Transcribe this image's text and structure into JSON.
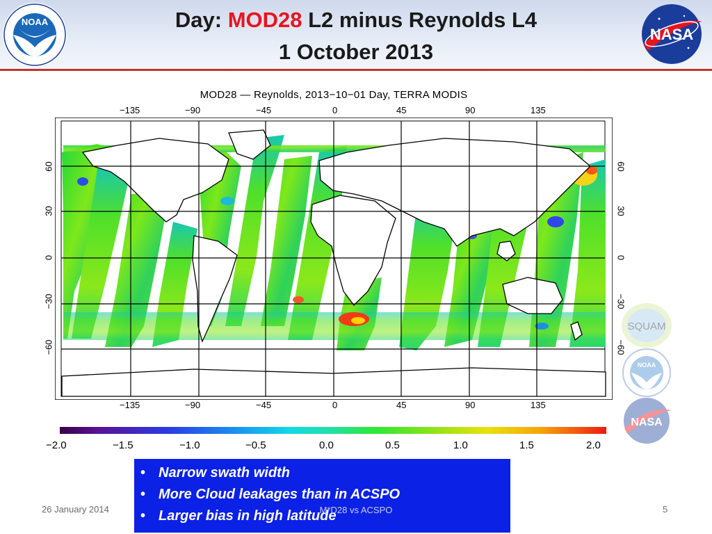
{
  "slide": {
    "title_prefix": "Day: ",
    "title_highlight": "MOD28",
    "title_suffix": " L2 minus Reynolds L4",
    "subtitle": "1 October 2013",
    "colors": {
      "highlight": "#e8141e",
      "bullet_box": "#0b21e6",
      "header_rule": "#c0342b"
    }
  },
  "logos": {
    "noaa_header": "NOAA",
    "nasa_header": "NASA",
    "squam": "SQUAM",
    "noaa_side": "NOAA",
    "nasa_side": "NASA"
  },
  "map": {
    "title": "MOD28 — Reynolds, 2013−10−01 Day, TERRA MODIS",
    "lon_labels": [
      "−135",
      "−90",
      "−45",
      "0",
      "45",
      "90",
      "135"
    ],
    "lat_labels": [
      "60",
      "30",
      "0",
      "−30",
      "−60"
    ]
  },
  "colorbar": {
    "ticks": [
      "−2.0",
      "−1.5",
      "−1.0",
      "−0.5",
      "0.0",
      "0.5",
      "1.0",
      "1.5",
      "2.0"
    ]
  },
  "bullets": [
    "Narrow swath width",
    "More Cloud leakages than in ACSPO",
    "Larger bias in high latitude"
  ],
  "footer": {
    "date": "26 January 2014",
    "center": "M*D28 vs ACSPO",
    "page": "5"
  }
}
